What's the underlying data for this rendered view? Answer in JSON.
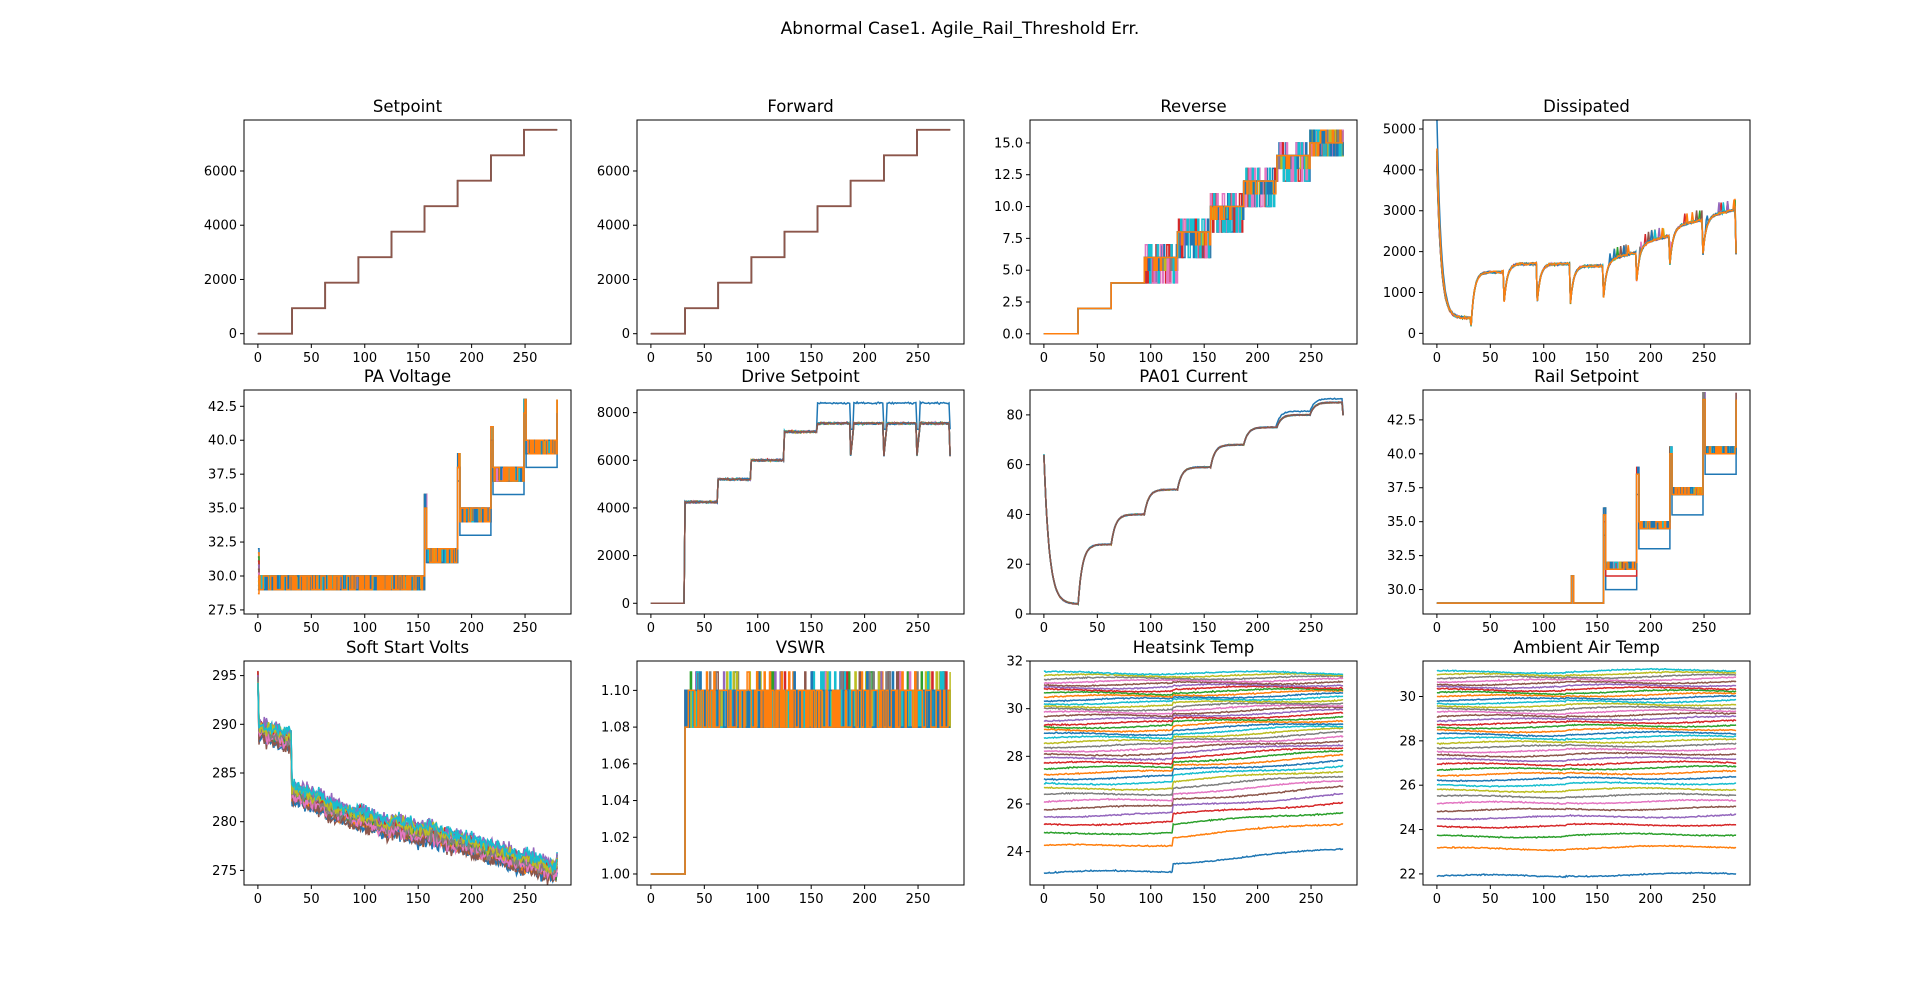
{
  "figure": {
    "suptitle": "Abnormal Case1. Agile_Rail_Threshold Err."
  },
  "palette": [
    "#1f77b4",
    "#ff7f0e",
    "#2ca02c",
    "#d62728",
    "#9467bd",
    "#8c564b",
    "#e377c2",
    "#7f7f7f",
    "#bcbd22",
    "#17becf"
  ],
  "chart_data": [
    {
      "type": "line",
      "title": "Setpoint",
      "xlim": [
        -13,
        293
      ],
      "ylim": [
        -380,
        7880
      ],
      "xticks": [
        0,
        50,
        100,
        150,
        200,
        250
      ],
      "xtick_labels": [
        "0",
        "50",
        "100",
        "150",
        "200",
        "250"
      ],
      "yticks": [
        0,
        2000,
        4000,
        6000
      ],
      "ytick_labels": [
        "0",
        "2000",
        "4000",
        "6000"
      ],
      "pattern": "steps",
      "steps": [
        0,
        940,
        1880,
        2820,
        3760,
        4700,
        5640,
        6580,
        7520
      ],
      "grid": false
    },
    {
      "type": "line",
      "title": "Forward",
      "xlim": [
        -13,
        293
      ],
      "ylim": [
        -380,
        7880
      ],
      "xticks": [
        0,
        50,
        100,
        150,
        200,
        250
      ],
      "xtick_labels": [
        "0",
        "50",
        "100",
        "150",
        "200",
        "250"
      ],
      "yticks": [
        0,
        2000,
        4000,
        6000
      ],
      "ytick_labels": [
        "0",
        "2000",
        "4000",
        "6000"
      ],
      "pattern": "steps",
      "steps": [
        0,
        940,
        1880,
        2820,
        3760,
        4700,
        5640,
        6580,
        7520
      ],
      "grid": false
    },
    {
      "type": "line",
      "title": "Reverse",
      "xlim": [
        -13,
        293
      ],
      "ylim": [
        -0.8,
        16.8
      ],
      "xticks": [
        0,
        50,
        100,
        150,
        200,
        250
      ],
      "xtick_labels": [
        "0",
        "50",
        "100",
        "150",
        "200",
        "250"
      ],
      "yticks": [
        0,
        2.5,
        5,
        7.5,
        10,
        12.5,
        15
      ],
      "ytick_labels": [
        "0.0",
        "2.5",
        "5.0",
        "7.5",
        "10.0",
        "12.5",
        "15.0"
      ],
      "pattern": "steps_noisy",
      "steps": [
        0,
        2,
        4,
        5.5,
        7.5,
        9.5,
        11.5,
        13.5,
        15
      ],
      "noise": 1.2,
      "grid": false
    },
    {
      "type": "line",
      "title": "Dissipated",
      "xlim": [
        -13,
        293
      ],
      "ylim": [
        -260,
        5220
      ],
      "xticks": [
        0,
        50,
        100,
        150,
        200,
        250
      ],
      "xtick_labels": [
        "0",
        "50",
        "100",
        "150",
        "200",
        "250"
      ],
      "yticks": [
        0,
        1000,
        2000,
        3000,
        4000,
        5000
      ],
      "ytick_labels": [
        "0",
        "1000",
        "2000",
        "3000",
        "4000",
        "5000"
      ],
      "pattern": "dissipated",
      "grid": false
    },
    {
      "type": "line",
      "title": "PA Voltage",
      "xlim": [
        -13,
        293
      ],
      "ylim": [
        27.2,
        43.7
      ],
      "xticks": [
        0,
        50,
        100,
        150,
        200,
        250
      ],
      "xtick_labels": [
        "0",
        "50",
        "100",
        "150",
        "200",
        "250"
      ],
      "yticks": [
        27.5,
        30,
        32.5,
        35,
        37.5,
        40,
        42.5
      ],
      "ytick_labels": [
        "27.5",
        "30.0",
        "32.5",
        "35.0",
        "37.5",
        "40.0",
        "42.5"
      ],
      "pattern": "pa_voltage",
      "grid": false
    },
    {
      "type": "line",
      "title": "Drive Setpoint",
      "xlim": [
        -13,
        293
      ],
      "ylim": [
        -450,
        8950
      ],
      "xticks": [
        0,
        50,
        100,
        150,
        200,
        250
      ],
      "xtick_labels": [
        "0",
        "50",
        "100",
        "150",
        "200",
        "250"
      ],
      "yticks": [
        0,
        2000,
        4000,
        6000,
        8000
      ],
      "ytick_labels": [
        "0",
        "2000",
        "4000",
        "6000",
        "8000"
      ],
      "pattern": "drive",
      "grid": false
    },
    {
      "type": "line",
      "title": "PA01 Current",
      "xlim": [
        -13,
        293
      ],
      "ylim": [
        0,
        90
      ],
      "xticks": [
        0,
        50,
        100,
        150,
        200,
        250
      ],
      "xtick_labels": [
        "0",
        "50",
        "100",
        "150",
        "200",
        "250"
      ],
      "yticks": [
        0,
        20,
        40,
        60,
        80
      ],
      "ytick_labels": [
        "0",
        "20",
        "40",
        "60",
        "80"
      ],
      "pattern": "current",
      "grid": false
    },
    {
      "type": "line",
      "title": "Rail Setpoint",
      "xlim": [
        -13,
        293
      ],
      "ylim": [
        28.2,
        44.7
      ],
      "xticks": [
        0,
        50,
        100,
        150,
        200,
        250
      ],
      "xtick_labels": [
        "0",
        "50",
        "100",
        "150",
        "200",
        "250"
      ],
      "yticks": [
        30,
        32.5,
        35,
        37.5,
        40,
        42.5
      ],
      "ytick_labels": [
        "30.0",
        "32.5",
        "35.0",
        "37.5",
        "40.0",
        "42.5"
      ],
      "pattern": "rail",
      "grid": false
    },
    {
      "type": "line",
      "title": "Soft Start Volts",
      "xlim": [
        -13,
        293
      ],
      "ylim": [
        273.5,
        296.5
      ],
      "xticks": [
        0,
        50,
        100,
        150,
        200,
        250
      ],
      "xtick_labels": [
        "0",
        "50",
        "100",
        "150",
        "200",
        "250"
      ],
      "yticks": [
        275,
        280,
        285,
        290,
        295
      ],
      "ytick_labels": [
        "275",
        "280",
        "285",
        "290",
        "295"
      ],
      "pattern": "softstart",
      "grid": false
    },
    {
      "type": "line",
      "title": "VSWR",
      "xlim": [
        -13,
        293
      ],
      "ylim": [
        0.994,
        1.116
      ],
      "xticks": [
        0,
        50,
        100,
        150,
        200,
        250
      ],
      "xtick_labels": [
        "0",
        "50",
        "100",
        "150",
        "200",
        "250"
      ],
      "yticks": [
        1.0,
        1.02,
        1.04,
        1.06,
        1.08,
        1.1
      ],
      "ytick_labels": [
        "1.00",
        "1.02",
        "1.04",
        "1.06",
        "1.08",
        "1.10"
      ],
      "pattern": "vswr",
      "grid": false
    },
    {
      "type": "line",
      "title": "Heatsink Temp",
      "xlim": [
        -13,
        293
      ],
      "ylim": [
        22.6,
        32
      ],
      "xticks": [
        0,
        50,
        100,
        150,
        200,
        250
      ],
      "xtick_labels": [
        "0",
        "50",
        "100",
        "150",
        "200",
        "250"
      ],
      "yticks": [
        24,
        26,
        28,
        30,
        32
      ],
      "ytick_labels": [
        "24",
        "26",
        "28",
        "30",
        "32"
      ],
      "pattern": "heatsink",
      "grid": false
    },
    {
      "type": "line",
      "title": "Ambient Air Temp",
      "xlim": [
        -13,
        293
      ],
      "ylim": [
        21.5,
        31.6
      ],
      "xticks": [
        0,
        50,
        100,
        150,
        200,
        250
      ],
      "xtick_labels": [
        "0",
        "50",
        "100",
        "150",
        "200",
        "250"
      ],
      "yticks": [
        22,
        24,
        26,
        28,
        30
      ],
      "ytick_labels": [
        "22",
        "24",
        "26",
        "28",
        "30"
      ],
      "pattern": "ambient",
      "grid": false
    }
  ]
}
